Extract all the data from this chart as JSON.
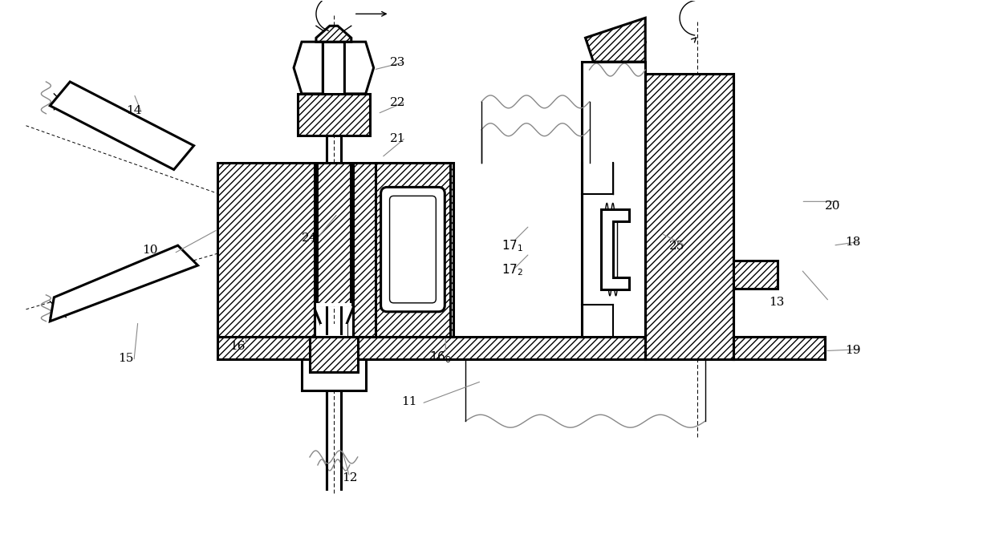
{
  "bg_color": "#ffffff",
  "line_color": "#000000",
  "fig_width": 12.4,
  "fig_height": 6.66,
  "dpi": 100
}
